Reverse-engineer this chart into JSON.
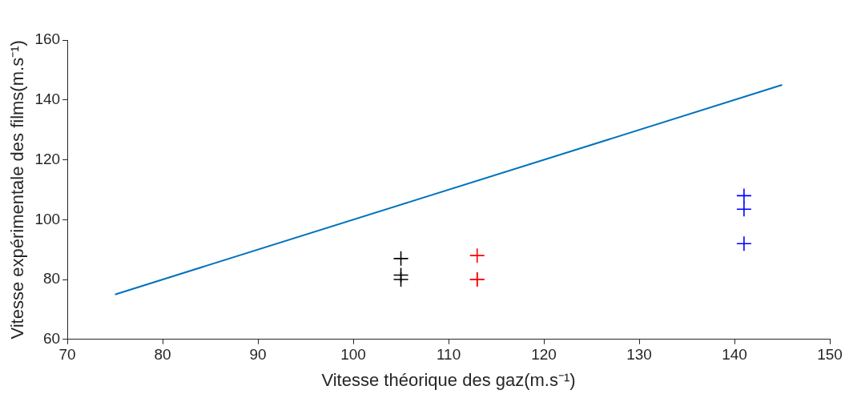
{
  "chart_data": {
    "type": "scatter",
    "xlabel": "Vitesse théorique des gaz(m.s⁻¹)",
    "ylabel": "Vitesse expérimentale des films(m.s⁻¹)",
    "xlim": [
      70,
      150
    ],
    "xticks": [
      70,
      80,
      90,
      100,
      110,
      120,
      130,
      140,
      150
    ],
    "ylim": [
      60,
      160
    ],
    "yticks": [
      60,
      80,
      100,
      120,
      140,
      160
    ],
    "grid": false,
    "legend": false,
    "series": [
      {
        "type": "line",
        "color": "#0072bd",
        "marker": "none",
        "x": [
          75,
          145
        ],
        "values": [
          75,
          145
        ]
      },
      {
        "type": "scatter",
        "color": "#000000",
        "marker": "cross",
        "x": [
          105,
          105,
          105
        ],
        "values": [
          87,
          81.5,
          80
        ]
      },
      {
        "type": "scatter",
        "color": "#ff0000",
        "marker": "cross",
        "x": [
          113,
          113,
          113
        ],
        "values": [
          88,
          80,
          80
        ]
      },
      {
        "type": "scatter",
        "color": "#0000ff",
        "marker": "cross",
        "x": [
          141,
          141,
          141
        ],
        "values": [
          108,
          103.5,
          92
        ]
      }
    ]
  }
}
